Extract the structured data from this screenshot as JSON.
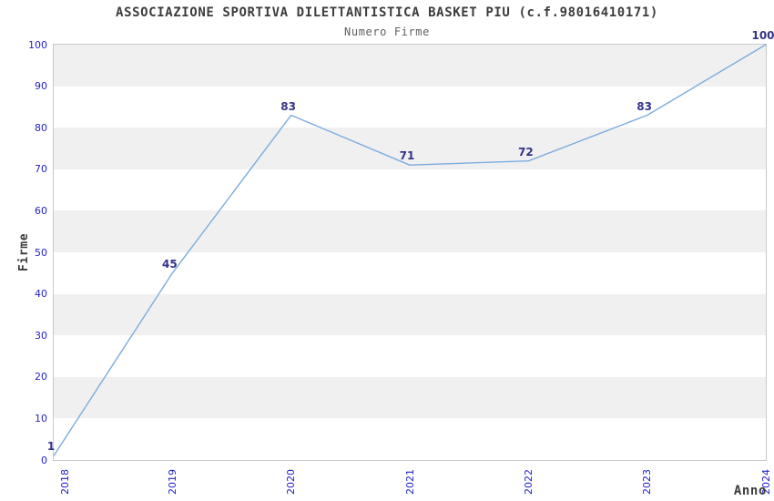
{
  "page": {
    "background": "#ffffff"
  },
  "chart_data": {
    "type": "line",
    "title": "ASSOCIAZIONE SPORTIVA DILETTANTISTICA BASKET PIU (c.f.98016410171)",
    "subtitle": "Numero Firme",
    "xlabel": "Anno",
    "ylabel": "Firme",
    "categories": [
      "2018",
      "2019",
      "2020",
      "2021",
      "2022",
      "2023",
      "2024"
    ],
    "values": [
      1,
      45,
      83,
      71,
      72,
      83,
      100
    ],
    "point_labels": [
      "1",
      "45",
      "83",
      "71",
      "72",
      "83",
      "100"
    ],
    "ylim": [
      0,
      100
    ],
    "yticks": [
      0,
      10,
      20,
      30,
      40,
      50,
      60,
      70,
      80,
      90,
      100
    ],
    "grid": "horizontal-alternating-bands",
    "legend": "none",
    "colors": {
      "line": "#7cacdf",
      "tick_labels": "#2222cc",
      "point_labels": "#333388",
      "title": "#3c3c3c",
      "subtitle": "#5f5f5f",
      "axis_titles": "#3c3c3c",
      "band_gray": "#f0f0f0",
      "band_white": "#ffffff",
      "plot_border": "#c9c9c9"
    }
  }
}
